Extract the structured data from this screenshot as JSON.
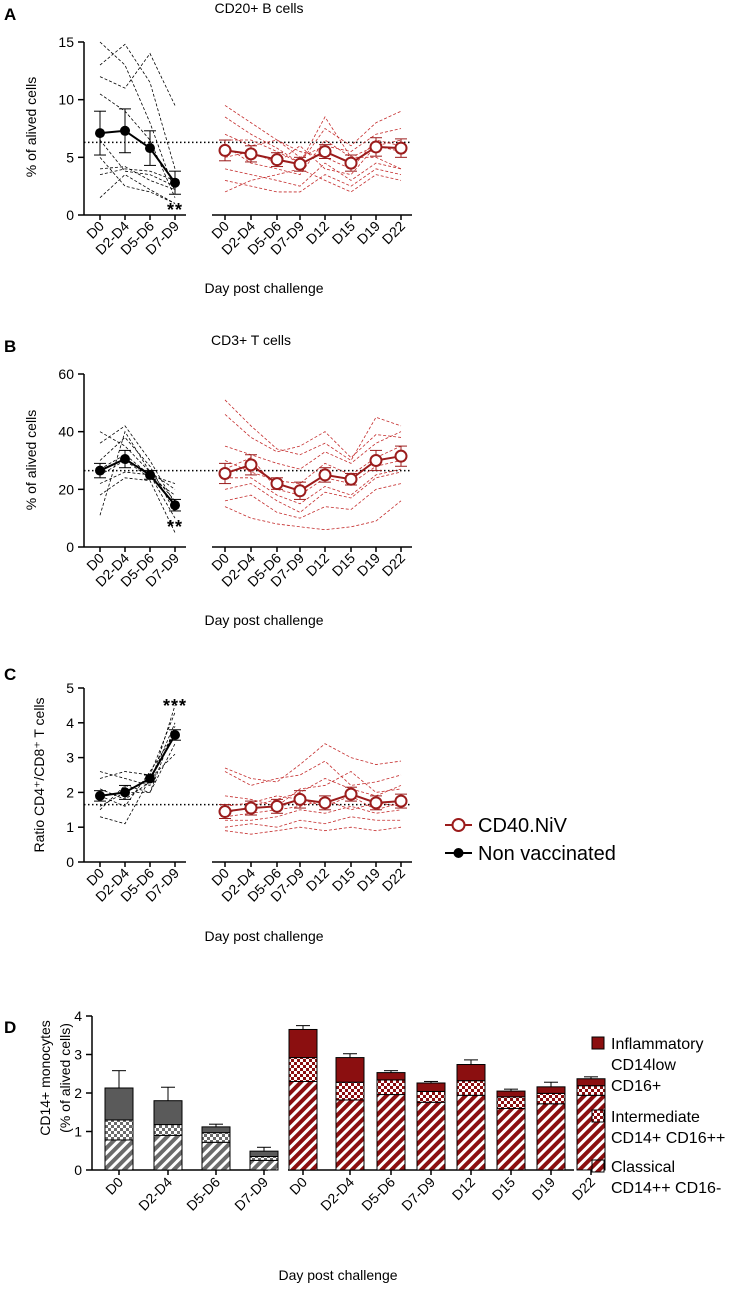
{
  "colors": {
    "nv": "#000000",
    "v": "#9b1c1c",
    "v_dash": "#c42b2b",
    "nv_bar": "#5a5a5a",
    "v_bar": "#8b0f10"
  },
  "legend_main": [
    {
      "label": "CD40.NiV",
      "marker": "open-circle",
      "color": "#9b1c1c"
    },
    {
      "label": "Non vaccinated",
      "marker": "filled-circle",
      "color": "#000000"
    }
  ],
  "legend_d": [
    {
      "lines": [
        "Inflammatory",
        "CD14low",
        "CD16+"
      ],
      "pattern": "solid"
    },
    {
      "lines": [
        "Intermediate",
        "CD14+ CD16++"
      ],
      "pattern": "checker"
    },
    {
      "lines": [
        "Classical",
        "CD14++ CD16-"
      ],
      "pattern": "hatch"
    }
  ],
  "chart_data": [
    {
      "id": "A",
      "type": "line",
      "title": "CD20+ B cells",
      "ylabel": "% of alived cells",
      "xlabel": "Day post challenge",
      "ylim": [
        0,
        15
      ],
      "yticks": [
        "0",
        "5",
        "10",
        "15"
      ],
      "reference_line": 6.3,
      "nv_categories": [
        "D0",
        "D2-D4",
        "D5-D6",
        "D7-D9"
      ],
      "v_categories": [
        "D0",
        "D2-D4",
        "D5-D6",
        "D7-D9",
        "D12",
        "D15",
        "D19",
        "D22"
      ],
      "significance": {
        "text": "**",
        "at": "D7-D9"
      },
      "series": [
        {
          "name": "Non vaccinated",
          "mean": [
            7.1,
            7.3,
            5.8,
            2.8
          ],
          "sem": [
            1.9,
            1.9,
            1.5,
            1.0
          ]
        },
        {
          "name": "CD40.NiV",
          "mean": [
            5.6,
            5.3,
            4.8,
            4.4,
            5.5,
            4.5,
            5.9,
            5.8
          ],
          "sem": [
            0.9,
            0.7,
            0.6,
            0.6,
            0.6,
            0.7,
            0.8,
            0.8
          ]
        }
      ],
      "individuals_nv": [
        [
          15.0,
          13.0,
          8.0,
          2.0
        ],
        [
          13.0,
          14.8,
          11.5,
          4.0
        ],
        [
          12.0,
          11.0,
          14.0,
          9.5
        ],
        [
          10.5,
          9.0,
          6.5,
          1.5
        ],
        [
          6.5,
          3.8,
          3.5,
          2.5
        ],
        [
          5.0,
          2.5,
          2.0,
          1.0
        ],
        [
          4.0,
          4.2,
          3.0,
          2.2
        ],
        [
          3.5,
          4.0,
          3.8,
          3.0
        ],
        [
          1.5,
          3.5,
          2.2,
          1.0
        ]
      ],
      "individuals_v": [
        [
          9.5,
          8.0,
          6.5,
          5.0,
          6.0,
          5.5,
          7.0,
          7.5
        ],
        [
          8.5,
          7.0,
          5.8,
          4.5,
          7.5,
          6.0,
          8.0,
          9.0
        ],
        [
          7.0,
          6.0,
          6.5,
          5.5,
          5.0,
          4.0,
          6.5,
          6.0
        ],
        [
          6.0,
          4.5,
          4.0,
          3.5,
          6.5,
          5.0,
          5.0,
          4.0
        ],
        [
          5.0,
          5.5,
          4.5,
          6.0,
          4.0,
          3.5,
          6.0,
          5.5
        ],
        [
          4.0,
          3.5,
          3.0,
          2.5,
          4.5,
          3.0,
          4.5,
          4.0
        ],
        [
          3.0,
          2.5,
          2.0,
          2.0,
          3.5,
          2.5,
          4.0,
          3.5
        ],
        [
          2.0,
          3.0,
          3.5,
          4.0,
          3.0,
          2.0,
          3.5,
          3.0
        ],
        [
          6.5,
          6.5,
          5.5,
          4.5,
          8.5,
          5.0,
          6.0,
          6.5
        ]
      ]
    },
    {
      "id": "B",
      "type": "line",
      "title": "CD3+ T cells",
      "ylabel": "% of alived cells",
      "xlabel": "Day post challenge",
      "ylim": [
        0,
        60
      ],
      "yticks": [
        "0",
        "20",
        "40",
        "60"
      ],
      "reference_line": 26.5,
      "nv_categories": [
        "D0",
        "D2-D4",
        "D5-D6",
        "D7-D9"
      ],
      "v_categories": [
        "D0",
        "D2-D4",
        "D5-D6",
        "D7-D9",
        "D12",
        "D15",
        "D19",
        "D22"
      ],
      "significance": {
        "text": "**",
        "at": "D7-D9"
      },
      "series": [
        {
          "name": "Non vaccinated",
          "mean": [
            26.5,
            30.5,
            25.0,
            14.5
          ],
          "sem": [
            2.5,
            3.0,
            1.5,
            2.0
          ]
        },
        {
          "name": "CD40.NiV",
          "mean": [
            25.5,
            28.5,
            22.0,
            19.5,
            25.0,
            23.5,
            30.0,
            31.5
          ],
          "sem": [
            3.5,
            3.5,
            2.0,
            3.0,
            2.5,
            2.0,
            3.5,
            3.5
          ]
        }
      ],
      "individuals_nv": [
        [
          40.0,
          35.0,
          26.0,
          20.0
        ],
        [
          36.0,
          42.0,
          30.0,
          15.0
        ],
        [
          30.0,
          38.0,
          28.0,
          12.0
        ],
        [
          27.0,
          32.0,
          25.0,
          22.0
        ],
        [
          25.0,
          30.0,
          24.0,
          18.0
        ],
        [
          22.0,
          26.0,
          25.0,
          10.0
        ],
        [
          18.0,
          24.0,
          23.0,
          5.0
        ],
        [
          11.0,
          40.0,
          26.0,
          16.0
        ]
      ],
      "individuals_v": [
        [
          51.0,
          42.0,
          34.0,
          32.0,
          36.0,
          30.0,
          45.0,
          42.0
        ],
        [
          46.0,
          38.0,
          33.0,
          35.0,
          40.0,
          31.0,
          39.0,
          38.0
        ],
        [
          35.0,
          32.0,
          29.0,
          27.0,
          33.0,
          29.0,
          36.0,
          40.0
        ],
        [
          30.0,
          26.0,
          23.0,
          22.0,
          29.0,
          25.0,
          31.0,
          35.0
        ],
        [
          27.0,
          31.0,
          20.0,
          18.0,
          24.0,
          22.0,
          28.0,
          30.0
        ],
        [
          24.0,
          24.0,
          18.0,
          15.0,
          21.0,
          18.0,
          25.0,
          27.0
        ],
        [
          20.0,
          22.0,
          16.0,
          12.0,
          19.0,
          17.0,
          24.0,
          26.0
        ],
        [
          16.0,
          18.0,
          12.0,
          10.0,
          14.0,
          13.0,
          20.0,
          22.0
        ],
        [
          14.0,
          10.0,
          8.0,
          7.0,
          6.0,
          7.0,
          9.0,
          16.0
        ]
      ]
    },
    {
      "id": "C",
      "type": "line",
      "title": "",
      "ylabel": "Ratio CD4⁺/CD8⁺ T cells",
      "xlabel": "Day post challenge",
      "ylim": [
        0,
        5
      ],
      "yticks": [
        "0",
        "1",
        "2",
        "3",
        "4",
        "5"
      ],
      "reference_line": 1.65,
      "nv_categories": [
        "D0",
        "D2-D4",
        "D5-D6",
        "D7-D9"
      ],
      "v_categories": [
        "D0",
        "D2-D4",
        "D5-D6",
        "D7-D9",
        "D12",
        "D15",
        "D19",
        "D22"
      ],
      "significance": {
        "text": "***",
        "at": "D7-D9"
      },
      "series": [
        {
          "name": "Non vaccinated",
          "mean": [
            1.9,
            2.0,
            2.4,
            3.65
          ],
          "sem": [
            0.15,
            0.2,
            0.1,
            0.15
          ]
        },
        {
          "name": "CD40.NiV",
          "mean": [
            1.45,
            1.55,
            1.6,
            1.8,
            1.7,
            1.95,
            1.7,
            1.75
          ],
          "sem": [
            0.2,
            0.2,
            0.2,
            0.25,
            0.2,
            0.2,
            0.2,
            0.2
          ]
        }
      ],
      "individuals_nv": [
        [
          2.6,
          2.4,
          2.2,
          4.5
        ],
        [
          2.4,
          2.6,
          2.5,
          4.3
        ],
        [
          2.1,
          1.8,
          2.3,
          4.0
        ],
        [
          1.9,
          1.6,
          2.6,
          3.7
        ],
        [
          1.6,
          2.0,
          2.0,
          3.4
        ],
        [
          1.3,
          1.1,
          2.4,
          3.1
        ],
        [
          1.5,
          2.2,
          2.0,
          3.9
        ]
      ],
      "individuals_v": [
        [
          2.7,
          2.4,
          2.3,
          2.8,
          3.4,
          3.0,
          2.8,
          2.9
        ],
        [
          2.6,
          2.2,
          2.4,
          2.5,
          2.9,
          2.2,
          2.3,
          2.5
        ],
        [
          1.9,
          1.8,
          1.6,
          2.1,
          2.2,
          2.6,
          2.0,
          2.1
        ],
        [
          1.6,
          1.7,
          1.9,
          1.8,
          1.6,
          1.9,
          1.5,
          1.7
        ],
        [
          1.3,
          1.4,
          1.5,
          1.6,
          1.8,
          1.5,
          1.7,
          1.6
        ],
        [
          1.2,
          1.2,
          1.3,
          1.5,
          1.4,
          1.6,
          1.4,
          1.5
        ],
        [
          1.0,
          1.1,
          1.0,
          1.2,
          1.1,
          1.3,
          1.2,
          1.2
        ],
        [
          0.9,
          0.8,
          0.9,
          1.0,
          0.9,
          1.0,
          0.9,
          1.0
        ],
        [
          1.4,
          1.6,
          1.8,
          2.0,
          2.4,
          2.1,
          1.9,
          2.2
        ]
      ]
    },
    {
      "id": "D",
      "type": "bar",
      "stacked": true,
      "title": "",
      "ylabel_lines": [
        "CD14+ monocytes",
        "(% of alived cells)"
      ],
      "xlabel": "Day post challenge",
      "ylim": [
        0,
        4
      ],
      "yticks": [
        "0",
        "1",
        "2",
        "3",
        "4"
      ],
      "nv_categories": [
        "D0",
        "D2-D4",
        "D5-D6",
        "D7-D9"
      ],
      "v_categories": [
        "D0",
        "D2-D4",
        "D5-D6",
        "D7-D9",
        "D12",
        "D15",
        "D19",
        "D22"
      ],
      "series": [
        {
          "name": "Classical CD14++ CD16-",
          "nv": [
            0.78,
            0.9,
            0.72,
            0.25
          ],
          "v": [
            2.3,
            1.82,
            1.96,
            1.76,
            1.94,
            1.6,
            1.72,
            1.94
          ]
        },
        {
          "name": "Intermediate CD14+ CD16++",
          "nv": [
            0.52,
            0.28,
            0.25,
            0.1
          ],
          "v": [
            0.62,
            0.46,
            0.38,
            0.28,
            0.38,
            0.3,
            0.27,
            0.25
          ]
        },
        {
          "name": "Inflammatory CD14low CD16+",
          "nv": [
            0.83,
            0.62,
            0.15,
            0.14
          ],
          "v": [
            0.73,
            0.64,
            0.19,
            0.22,
            0.42,
            0.15,
            0.17,
            0.18
          ]
        }
      ],
      "error_top": {
        "nv": [
          0.45,
          0.35,
          0.07,
          0.1
        ],
        "v": [
          0.1,
          0.1,
          0.05,
          0.04,
          0.12,
          0.05,
          0.12,
          0.05
        ]
      }
    }
  ]
}
